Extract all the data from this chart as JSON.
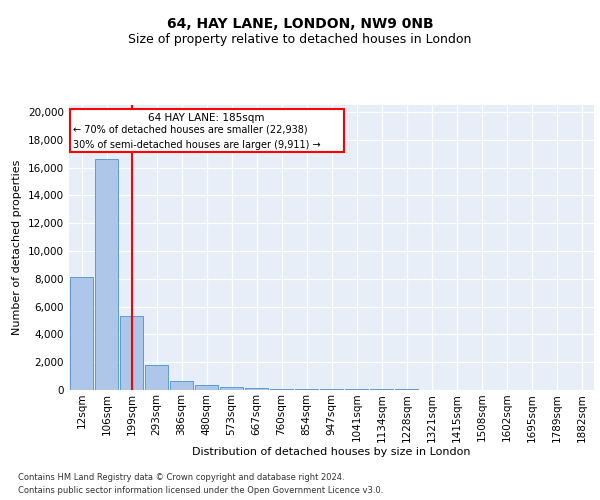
{
  "title1": "64, HAY LANE, LONDON, NW9 0NB",
  "title2": "Size of property relative to detached houses in London",
  "xlabel": "Distribution of detached houses by size in London",
  "ylabel": "Number of detached properties",
  "annotation_line1": "64 HAY LANE: 185sqm",
  "annotation_line2": "← 70% of detached houses are smaller (22,938)",
  "annotation_line3": "30% of semi-detached houses are larger (9,911) →",
  "footnote1": "Contains HM Land Registry data © Crown copyright and database right 2024.",
  "footnote2": "Contains public sector information licensed under the Open Government Licence v3.0.",
  "bar_color": "#aec6e8",
  "bar_edge_color": "#5b9bd5",
  "property_line_x": 2,
  "categories": [
    "12sqm",
    "106sqm",
    "199sqm",
    "293sqm",
    "386sqm",
    "480sqm",
    "573sqm",
    "667sqm",
    "760sqm",
    "854sqm",
    "947sqm",
    "1041sqm",
    "1134sqm",
    "1228sqm",
    "1321sqm",
    "1415sqm",
    "1508sqm",
    "1602sqm",
    "1695sqm",
    "1789sqm",
    "1882sqm"
  ],
  "values": [
    8100,
    16600,
    5300,
    1800,
    650,
    350,
    220,
    130,
    100,
    80,
    70,
    60,
    50,
    40,
    35,
    30,
    25,
    20,
    15,
    10,
    5
  ],
  "ylim": [
    0,
    20500
  ],
  "yticks": [
    0,
    2000,
    4000,
    6000,
    8000,
    10000,
    12000,
    14000,
    16000,
    18000,
    20000
  ],
  "bg_color": "#e8eef8",
  "title1_fontsize": 10,
  "title2_fontsize": 9,
  "axis_fontsize": 8,
  "tick_fontsize": 7.5
}
